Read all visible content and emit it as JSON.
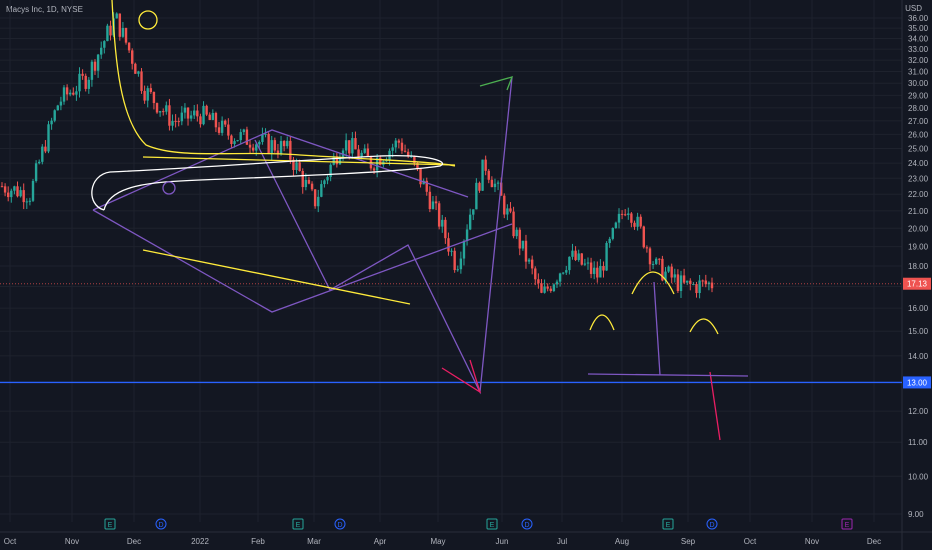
{
  "header": {
    "symbol_line": "Macys Inc, 1D, NYSE",
    "currency": "USD"
  },
  "chart_data": {
    "type": "candlestick",
    "y_scale": "log",
    "ylim": [
      8.8,
      37.5
    ],
    "y_ticks": [
      "36.00",
      "35.00",
      "34.00",
      "33.00",
      "32.00",
      "31.00",
      "30.00",
      "29.00",
      "28.00",
      "27.00",
      "26.00",
      "25.00",
      "24.00",
      "23.00",
      "22.00",
      "21.00",
      "20.00",
      "19.00",
      "18.00",
      "17.00",
      "16.00",
      "15.00",
      "14.00",
      "13.00",
      "12.00",
      "11.00",
      "10.00",
      "9.00"
    ],
    "y_tick_values": [
      36,
      35,
      34,
      33,
      32,
      31,
      30,
      29,
      28,
      27,
      26,
      25,
      24,
      23,
      22,
      21,
      20,
      19,
      18,
      17,
      16,
      15,
      14,
      13,
      12,
      11,
      10,
      9
    ],
    "x_ticks": [
      "Oct",
      "Nov",
      "Dec",
      "2022",
      "Feb",
      "Mar",
      "Apr",
      "May",
      "Jun",
      "Jul",
      "Aug",
      "Sep",
      "Oct",
      "Nov",
      "Dec"
    ],
    "current_price": {
      "label": "17.13",
      "value": 17.13
    },
    "horizontal_level": {
      "label": "13.00",
      "value": 13.0
    },
    "close_path": [
      {
        "x": "Oct",
        "v": 22.5
      },
      {
        "x": "mid-Oct",
        "v": 22.0
      },
      {
        "x": "Nov",
        "v": 28.5
      },
      {
        "x": "mid-Nov",
        "v": 30.5
      },
      {
        "x": "late-Nov",
        "v": 36.0
      },
      {
        "x": "Dec",
        "v": 29.5
      },
      {
        "x": "mid-Dec",
        "v": 27.0
      },
      {
        "x": "2022",
        "v": 27.5
      },
      {
        "x": "mid-Jan",
        "v": 26.0
      },
      {
        "x": "Feb",
        "v": 25.5
      },
      {
        "x": "mid-Feb",
        "v": 25.0
      },
      {
        "x": "Mar",
        "v": 21.5
      },
      {
        "x": "mid-Mar",
        "v": 25.5
      },
      {
        "x": "Apr",
        "v": 24.0
      },
      {
        "x": "mid-Apr",
        "v": 25.5
      },
      {
        "x": "May",
        "v": 22.0
      },
      {
        "x": "mid-May",
        "v": 18.0
      },
      {
        "x": "Jun",
        "v": 24.0
      },
      {
        "x": "mid-Jun",
        "v": 20.0
      },
      {
        "x": "Jul",
        "v": 16.5
      },
      {
        "x": "mid-Jul",
        "v": 18.5
      },
      {
        "x": "Aug",
        "v": 17.5
      },
      {
        "x": "mid-Aug",
        "v": 21.5
      },
      {
        "x": "late-Aug",
        "v": 18.0
      },
      {
        "x": "Sep",
        "v": 17.0
      },
      {
        "x": "mid-Sep",
        "v": 17.13
      }
    ],
    "event_markers": [
      "E",
      "D",
      "E",
      "D",
      "E",
      "D",
      "E",
      "D",
      "E"
    ]
  },
  "colors": {
    "background": "#131722",
    "grid": "#1e222d",
    "up": "#26a69a",
    "down": "#ef5350",
    "level": "#2962ff",
    "purple": "#7e57c2",
    "yellow": "#ffeb3b",
    "white": "#ffffff",
    "pink": "#e91e63",
    "green": "#4caf50",
    "axis_text": "#b2b5be"
  }
}
